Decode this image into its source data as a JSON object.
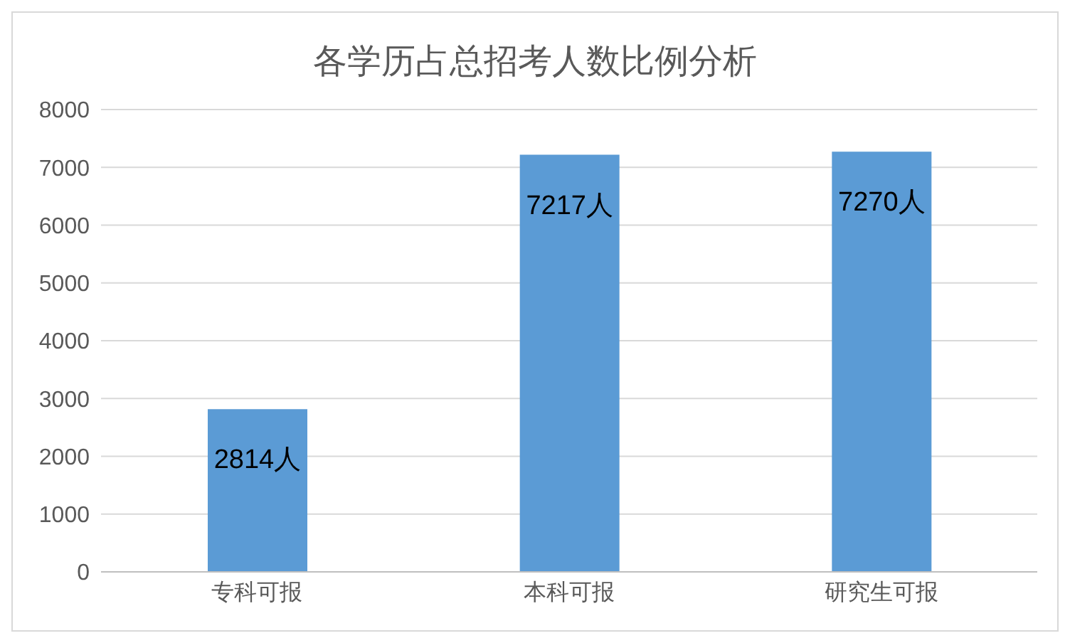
{
  "chart_data": {
    "type": "bar",
    "title": "各学历占总招考人数比例分析",
    "categories": [
      "专科可报",
      "本科可报",
      "研究生可报"
    ],
    "values": [
      2814,
      7217,
      7270
    ],
    "value_labels": [
      "2814人",
      "7217人",
      "7270人"
    ],
    "color": "#5b9bd5",
    "ylim": [
      0,
      8000
    ],
    "yticks": [
      0,
      1000,
      2000,
      3000,
      4000,
      5000,
      6000,
      7000,
      8000
    ],
    "grid": "y"
  }
}
